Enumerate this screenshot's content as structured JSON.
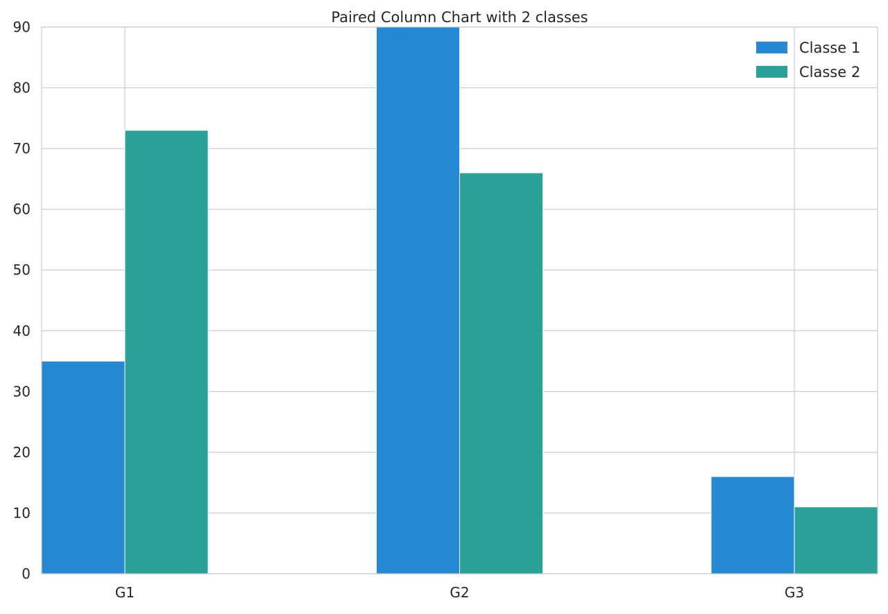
{
  "chart_data": {
    "type": "bar",
    "title": "Paired Column Chart with 2 classes",
    "xlabel": "",
    "ylabel": "",
    "categories": [
      "G1",
      "G2",
      "G3"
    ],
    "series": [
      {
        "name": "Classe 1",
        "values": [
          35,
          90,
          16
        ],
        "color": "#2689d3"
      },
      {
        "name": "Classe 2",
        "values": [
          73,
          66,
          11
        ],
        "color": "#2aa198"
      }
    ],
    "ylim": [
      0,
      90
    ],
    "yticks": [
      0,
      10,
      20,
      30,
      40,
      50,
      60,
      70,
      80,
      90
    ],
    "grid": true,
    "legend_position": "top-right"
  }
}
